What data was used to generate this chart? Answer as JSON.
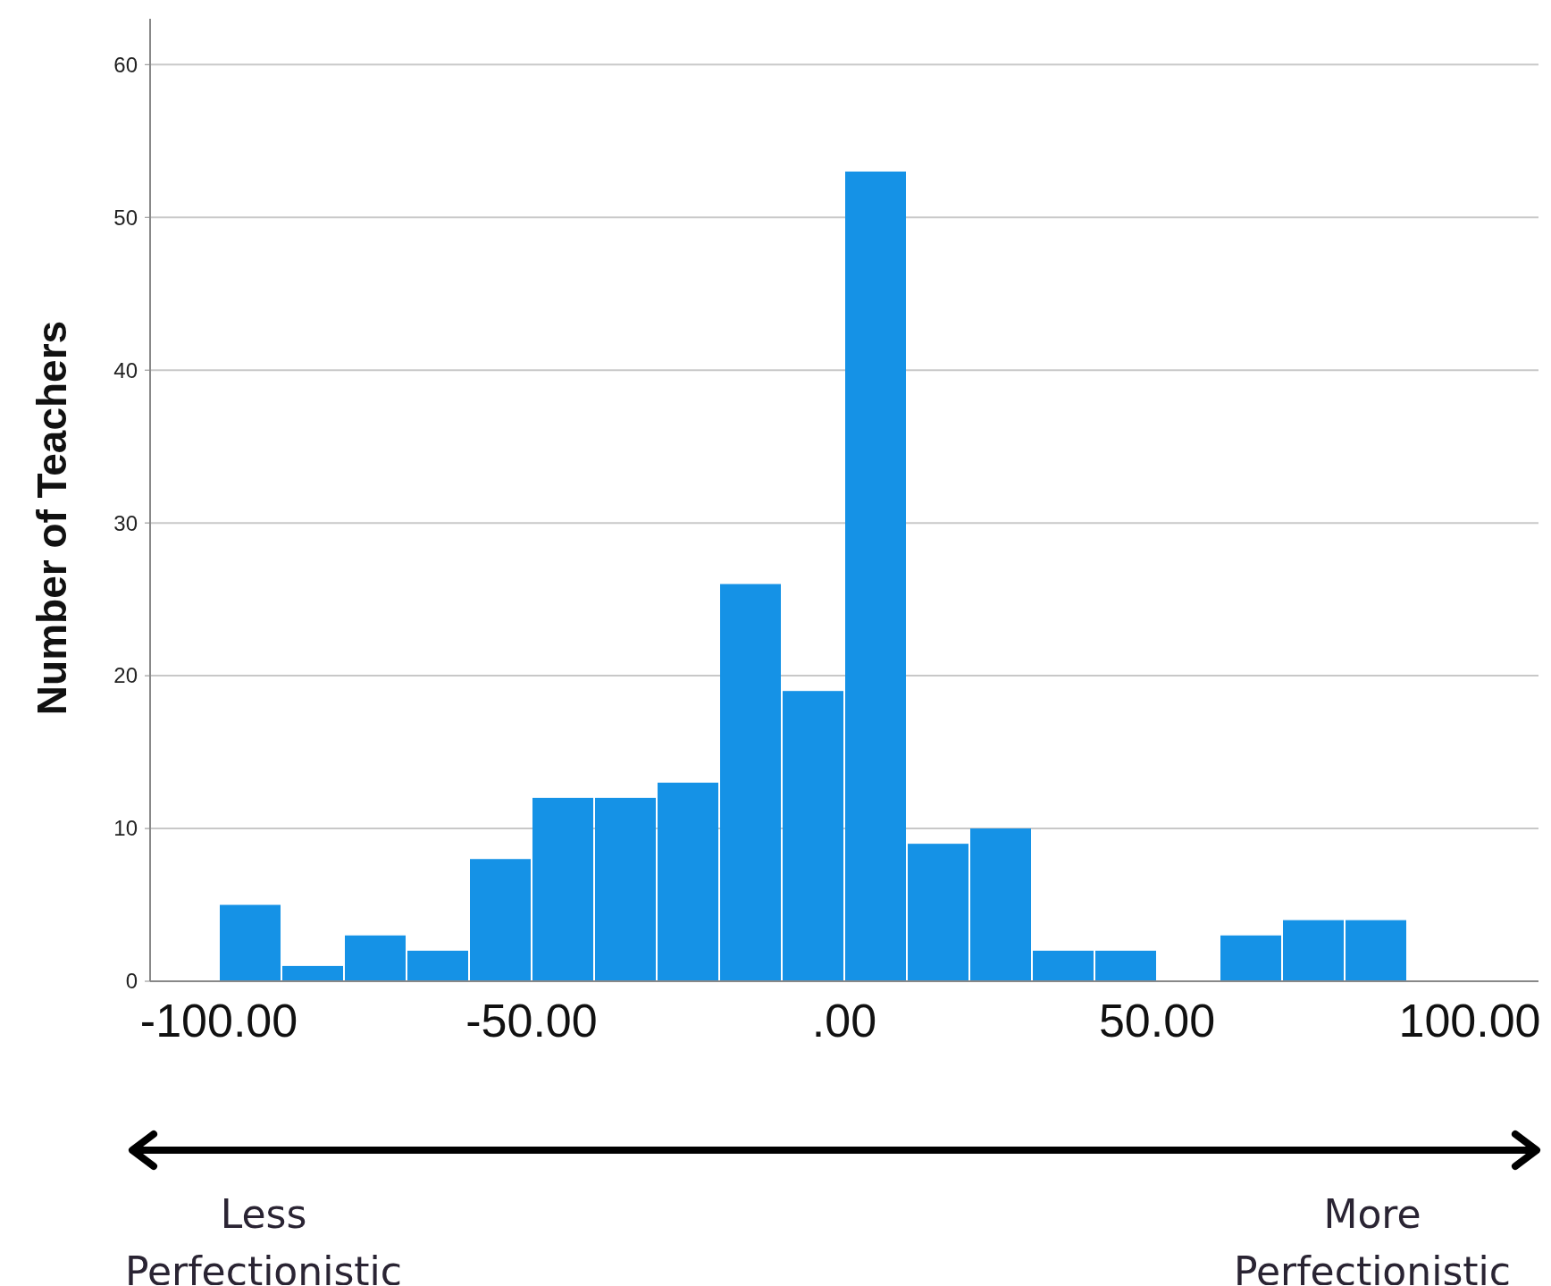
{
  "chart_data": {
    "type": "histogram",
    "ylabel": "Number of Teachers",
    "bins": [
      -100,
      -90,
      -80,
      -70,
      -60,
      -50,
      -40,
      -30,
      -20,
      -10,
      0,
      10,
      20,
      30,
      40,
      50,
      60,
      70,
      80,
      90
    ],
    "values": [
      5,
      1,
      3,
      2,
      8,
      12,
      12,
      13,
      26,
      19,
      53,
      9,
      10,
      2,
      2,
      0,
      3,
      4,
      4
    ],
    "color": "#1592e6",
    "xlim": [
      -111,
      111
    ],
    "xticks": [
      {
        "value": -100,
        "label": "-100.00"
      },
      {
        "value": -50,
        "label": "-50.00"
      },
      {
        "value": 0,
        "label": ".00"
      },
      {
        "value": 50,
        "label": "50.00"
      },
      {
        "value": 100,
        "label": "100.00"
      }
    ],
    "ylim": [
      0,
      63
    ],
    "yticks": [
      0,
      10,
      20,
      30,
      40,
      50,
      60
    ],
    "grid": "y",
    "annotations": [
      "Less Perfectionistic",
      "More Perfectionistic"
    ]
  }
}
